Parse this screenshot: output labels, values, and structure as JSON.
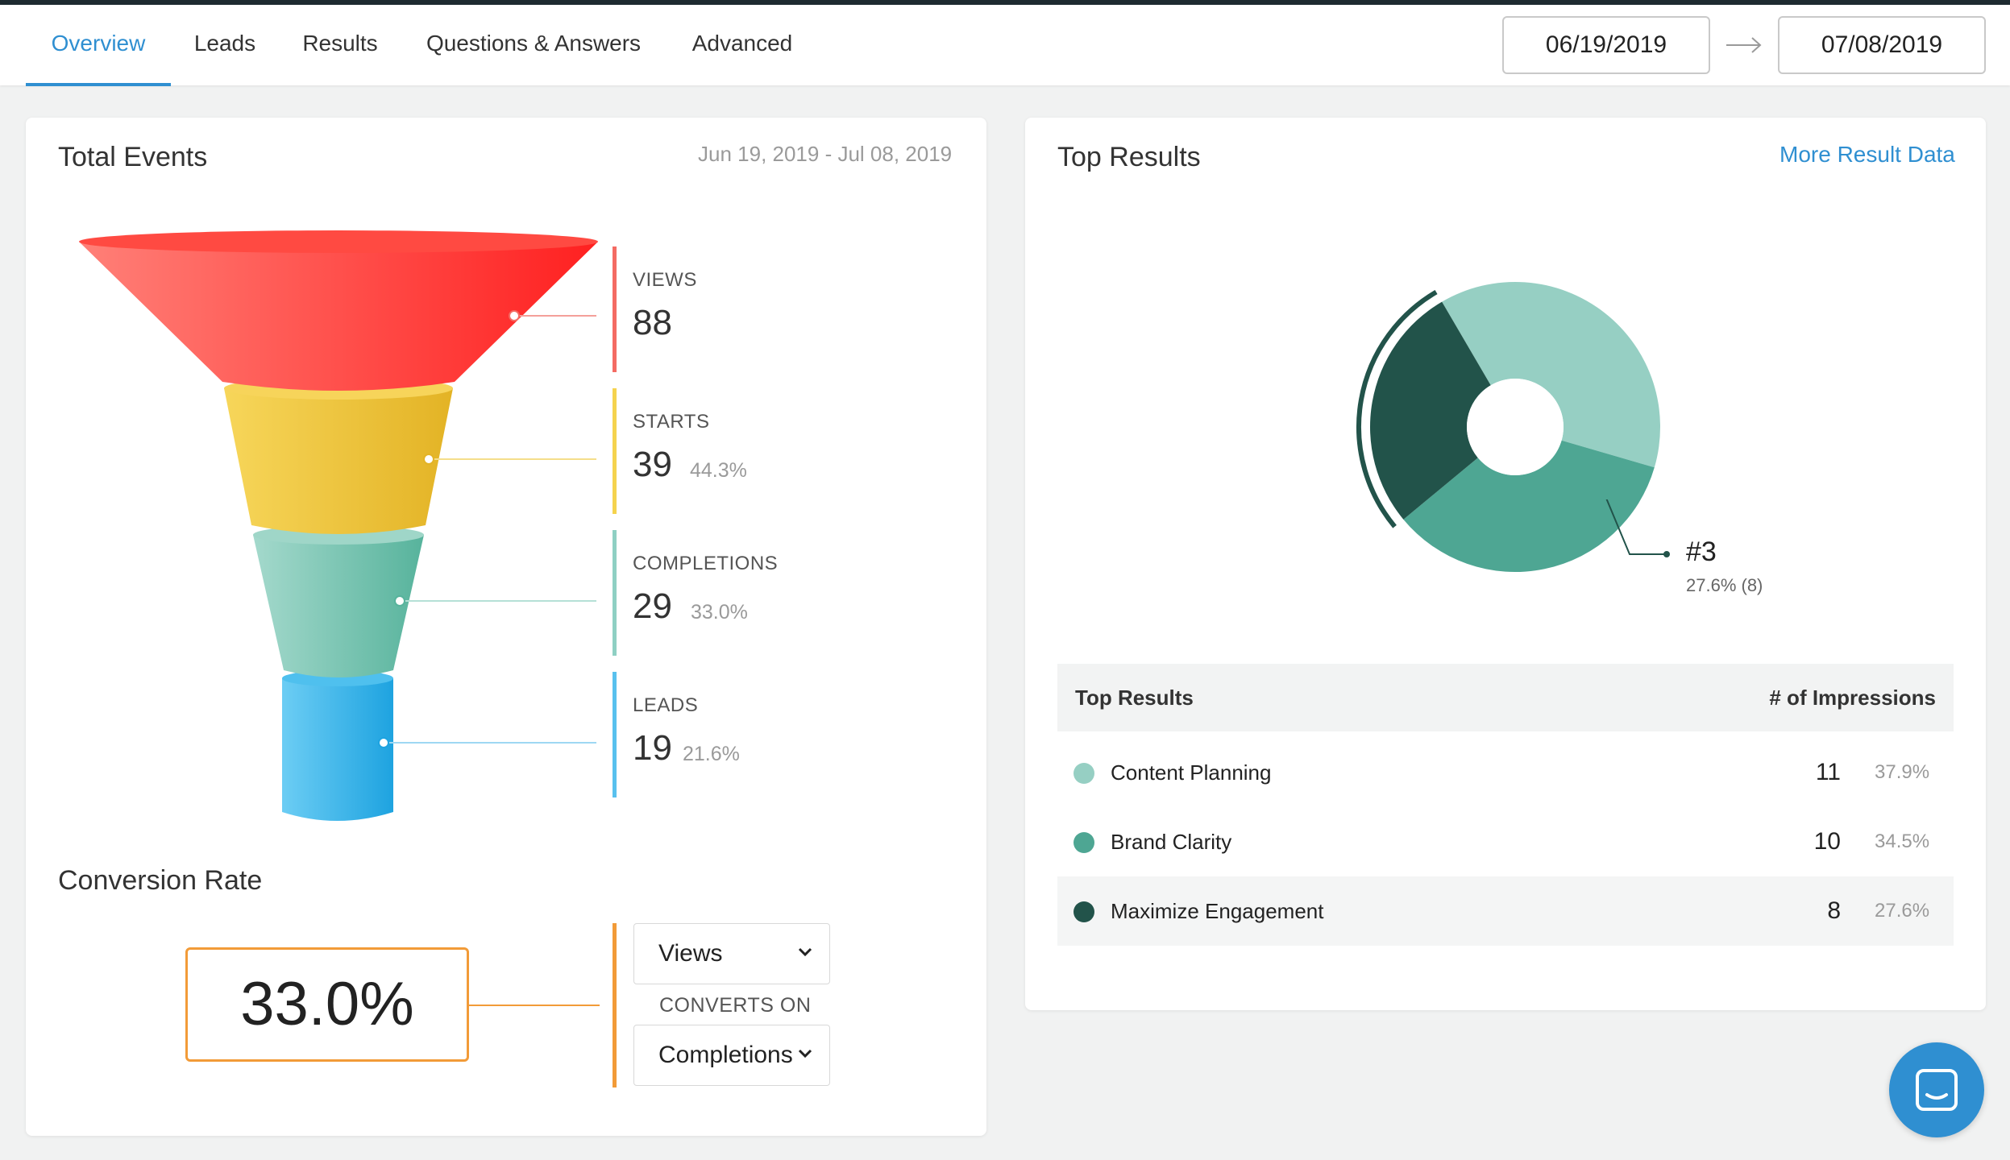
{
  "nav": {
    "tabs": [
      {
        "label": "Overview",
        "active": true
      },
      {
        "label": "Leads"
      },
      {
        "label": "Results"
      },
      {
        "label": "Questions & Answers"
      },
      {
        "label": "Advanced"
      }
    ],
    "date_start": "06/19/2019",
    "date_end": "07/08/2019"
  },
  "events": {
    "title": "Total Events",
    "date_range": "Jun 19, 2019 - Jul 08, 2019",
    "stages": [
      {
        "label": "VIEWS",
        "value": "88",
        "pct": "",
        "color": "#f46b63"
      },
      {
        "label": "STARTS",
        "value": "39",
        "pct": "44.3%",
        "color": "#f5d34e"
      },
      {
        "label": "COMPLETIONS",
        "value": "29",
        "pct": "33.0%",
        "color": "#8fd0c3"
      },
      {
        "label": "LEADS",
        "value": "19",
        "pct": "21.6%",
        "color": "#59c1ee"
      }
    ]
  },
  "conversion": {
    "title": "Conversion Rate",
    "rate": "33.0%",
    "from": "Views",
    "converts_on_label": "CONVERTS ON",
    "to": "Completions",
    "accent": "#f29b38"
  },
  "top_results": {
    "title": "Top Results",
    "more_link": "More Result Data",
    "highlight": {
      "rank": "#3",
      "detail": "27.6% (8)"
    },
    "table": {
      "col_name": "Top Results",
      "col_count": "# of Impressions",
      "rows": [
        {
          "name": "Content Planning",
          "count": "11",
          "pct": "37.9%",
          "color": "#96cfc3"
        },
        {
          "name": "Brand Clarity",
          "count": "10",
          "pct": "34.5%",
          "color": "#4ea693"
        },
        {
          "name": "Maximize Engagement",
          "count": "8",
          "pct": "27.6%",
          "color": "#22534a"
        }
      ]
    }
  },
  "chart_data": {
    "type": "pie",
    "title": "Top Results",
    "categories": [
      "Content Planning",
      "Brand Clarity",
      "Maximize Engagement"
    ],
    "values": [
      11,
      10,
      8
    ],
    "percentages": [
      37.9,
      34.5,
      27.6
    ],
    "colors": [
      "#96cfc3",
      "#4ea693",
      "#22534a"
    ],
    "highlighted": "Maximize Engagement"
  }
}
